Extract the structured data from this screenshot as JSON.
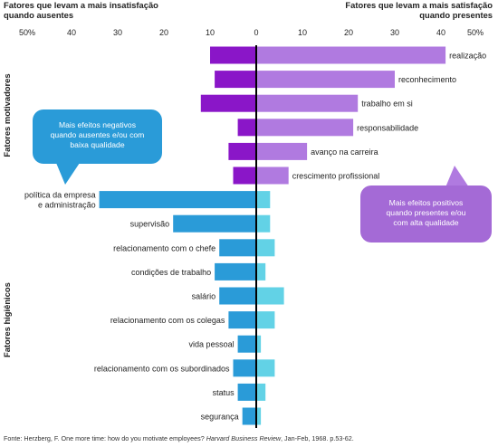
{
  "header": {
    "left_line1": "Fatores que levam a mais insatisfação",
    "left_line2": "quando ausentes",
    "right_line1": "Fatores que levam a mais satisfação",
    "right_line2": "quando presentes"
  },
  "group_labels": {
    "motivators": "Fatores motivadores",
    "hygiene": "Fatores higiênicos"
  },
  "callouts": {
    "negative": [
      "Mais efeitos negativos",
      "quando ausentes e/ou com",
      "baixa qualidade"
    ],
    "positive": [
      "Mais efeitos positivos",
      "quando presentes e/ou",
      "com alta qualidade"
    ]
  },
  "source": {
    "prefix": "Fonte: Herzberg, F. One more time: how do you motivate employees? ",
    "journal": "Harvard Business Review",
    "suffix": ", Jan-Feb, 1968. p.53-62."
  },
  "chart_data": {
    "type": "bar",
    "orientation": "horizontal-diverging",
    "x_ticks": [
      "50%",
      "40",
      "30",
      "20",
      "10",
      "0",
      "10",
      "20",
      "30",
      "40",
      "50%"
    ],
    "xlim": [
      -50,
      50
    ],
    "units": "%",
    "categories": [
      {
        "label": [
          "realização"
        ],
        "group": "motivators",
        "dissatisfaction": 10,
        "satisfaction": 41
      },
      {
        "label": [
          "reconhecimento"
        ],
        "group": "motivators",
        "dissatisfaction": 9,
        "satisfaction": 30
      },
      {
        "label": [
          "trabalho em si"
        ],
        "group": "motivators",
        "dissatisfaction": 12,
        "satisfaction": 22
      },
      {
        "label": [
          "responsabilidade"
        ],
        "group": "motivators",
        "dissatisfaction": 4,
        "satisfaction": 21
      },
      {
        "label": [
          "avanço na carreira"
        ],
        "group": "motivators",
        "dissatisfaction": 6,
        "satisfaction": 11
      },
      {
        "label": [
          "crescimento profissional"
        ],
        "group": "motivators",
        "dissatisfaction": 5,
        "satisfaction": 7
      },
      {
        "label": [
          "política da empresa",
          "e administração"
        ],
        "group": "hygiene",
        "dissatisfaction": 34,
        "satisfaction": 3
      },
      {
        "label": [
          "supervisão"
        ],
        "group": "hygiene",
        "dissatisfaction": 18,
        "satisfaction": 3
      },
      {
        "label": [
          "relacionamento com o chefe"
        ],
        "group": "hygiene",
        "dissatisfaction": 8,
        "satisfaction": 4
      },
      {
        "label": [
          "condições de trabalho"
        ],
        "group": "hygiene",
        "dissatisfaction": 9,
        "satisfaction": 2
      },
      {
        "label": [
          "salário"
        ],
        "group": "hygiene",
        "dissatisfaction": 8,
        "satisfaction": 6
      },
      {
        "label": [
          "relacionamento com os colegas"
        ],
        "group": "hygiene",
        "dissatisfaction": 6,
        "satisfaction": 4
      },
      {
        "label": [
          "vida pessoal"
        ],
        "group": "hygiene",
        "dissatisfaction": 4,
        "satisfaction": 1
      },
      {
        "label": [
          "relacionamento com os subordinados"
        ],
        "group": "hygiene",
        "dissatisfaction": 5,
        "satisfaction": 4
      },
      {
        "label": [
          "status"
        ],
        "group": "hygiene",
        "dissatisfaction": 4,
        "satisfaction": 2
      },
      {
        "label": [
          "segurança"
        ],
        "group": "hygiene",
        "dissatisfaction": 3,
        "satisfaction": 1
      }
    ],
    "colors": {
      "motivator_dissatisfaction": "#8a16c8",
      "motivator_satisfaction": "#b07ae0",
      "hygiene_dissatisfaction": "#2a9bd8",
      "hygiene_satisfaction": "#62d2e6"
    },
    "grid": false,
    "legend": "none"
  }
}
